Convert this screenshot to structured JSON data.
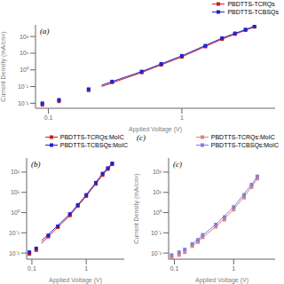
{
  "chart_data": [
    {
      "type": "scatter",
      "label": "(a)",
      "xlabel": "Applied Voltage (V)",
      "ylabel": "Current Density (mA/cm²)",
      "log": true,
      "xlim": [
        0.08,
        5.0
      ],
      "ylim": [
        0.005,
        500
      ],
      "xticks": [
        0.1,
        1
      ],
      "yticks": [
        {
          "value": 0.01,
          "label": "10⁻²"
        },
        {
          "value": 0.1,
          "label": "10⁻¹"
        },
        {
          "value": 1,
          "label": "10⁰"
        },
        {
          "value": 10,
          "label": "10¹"
        },
        {
          "value": 100,
          "label": "10²"
        }
      ],
      "grid": false,
      "legend": "top",
      "series": [
        {
          "name": "PBDTTS-TCRQs",
          "color": "#cc2222",
          "marker": "square",
          "x": [
            0.09,
            0.12,
            0.2,
            0.3,
            0.5,
            0.7,
            1.0,
            1.5,
            2.0,
            2.5,
            3.0,
            3.5
          ],
          "values": [
            0.008,
            0.013,
            0.06,
            0.18,
            0.7,
            2.0,
            6.0,
            25,
            70,
            140,
            240,
            380
          ],
          "line_x": [
            0.25,
            0.5,
            1.0,
            2.0,
            3.5
          ],
          "line_values": [
            0.1,
            0.7,
            6.0,
            70,
            380
          ]
        },
        {
          "name": "PBDTTS-TCBSQs",
          "color": "#2222cc",
          "marker": "square",
          "x": [
            0.09,
            0.12,
            0.2,
            0.3,
            0.5,
            0.7,
            1.0,
            1.5,
            2.0,
            2.5,
            3.0,
            3.5
          ],
          "values": [
            0.01,
            0.016,
            0.07,
            0.2,
            0.8,
            2.3,
            7.0,
            28,
            80,
            155,
            265,
            410
          ],
          "line_x": [
            0.25,
            0.5,
            1.0,
            2.0,
            3.5
          ],
          "line_values": [
            0.12,
            0.8,
            7.0,
            80,
            410
          ]
        }
      ]
    },
    {
      "type": "scatter",
      "label": "(b)",
      "xlabel": "Applied Voltage (V)",
      "log": true,
      "xlim": [
        0.08,
        5.0
      ],
      "ylim": [
        0.005,
        500
      ],
      "xticks": [
        0.1,
        1
      ],
      "yticks": [
        {
          "value": 0.01,
          "label": "10⁻²"
        },
        {
          "value": 0.1,
          "label": "10⁻¹"
        },
        {
          "value": 1,
          "label": "10⁰"
        },
        {
          "value": 10,
          "label": "10¹"
        },
        {
          "value": 100,
          "label": "10²"
        }
      ],
      "grid": false,
      "legend": "top",
      "series": [
        {
          "name": "PBDTTS-TCRQs:MoIC",
          "color": "#cc2222",
          "marker": "square",
          "x": [
            0.09,
            0.12,
            0.2,
            0.3,
            0.5,
            0.7,
            1.0,
            1.5,
            2.0,
            2.5,
            3.0
          ],
          "values": [
            0.009,
            0.014,
            0.065,
            0.19,
            0.72,
            2.1,
            6.5,
            26,
            72,
            142,
            245
          ],
          "line_x": [
            0.15,
            0.5,
            1.0,
            2.0,
            3.0
          ],
          "line_values": [
            0.03,
            0.72,
            6.5,
            72,
            245
          ]
        },
        {
          "name": "PBDTTS-TCBSQs:MoIC",
          "color": "#2222cc",
          "marker": "square",
          "x": [
            0.09,
            0.12,
            0.2,
            0.3,
            0.5,
            0.7,
            1.0,
            1.5,
            2.0,
            2.5,
            3.0
          ],
          "values": [
            0.011,
            0.017,
            0.075,
            0.21,
            0.85,
            2.4,
            7.5,
            30,
            85,
            158,
            270
          ],
          "line_x": [
            0.15,
            0.5,
            1.0,
            2.0,
            3.0
          ],
          "line_values": [
            0.04,
            0.85,
            7.5,
            85,
            270
          ]
        }
      ]
    },
    {
      "type": "scatter",
      "label": "(c)",
      "annotations": [
        "(c)"
      ],
      "xlabel": "Applied Voltage (V)",
      "ylabel": "Current Density (mA/cm²)",
      "log": true,
      "xlim": [
        0.08,
        5.0
      ],
      "ylim": [
        0.005,
        500
      ],
      "xticks": [
        0.1,
        1
      ],
      "yticks": [
        {
          "value": 0.01,
          "label": "10⁻²"
        },
        {
          "value": 0.1,
          "label": "10⁻¹"
        },
        {
          "value": 1,
          "label": "10⁰"
        },
        {
          "value": 10,
          "label": "10¹"
        },
        {
          "value": 100,
          "label": "10²"
        }
      ],
      "grid": false,
      "legend": "top",
      "series": [
        {
          "name": "PBDTTS-TCRQs:MoIC",
          "color": "#e08080",
          "marker": "square",
          "x": [
            0.09,
            0.12,
            0.15,
            0.2,
            0.25,
            0.3,
            0.5,
            0.7,
            1.0,
            1.5,
            2.0,
            2.5
          ],
          "values": [
            0.006,
            0.008,
            0.011,
            0.022,
            0.035,
            0.06,
            0.2,
            0.45,
            1.4,
            5.5,
            18,
            48
          ],
          "line_x": [
            0.2,
            0.5,
            1.0,
            2.0,
            2.5
          ],
          "line_values": [
            0.022,
            0.2,
            1.4,
            18,
            48
          ]
        },
        {
          "name": "PBDTTS-TCBSQs:MoIC",
          "color": "#8080e0",
          "marker": "square",
          "x": [
            0.09,
            0.12,
            0.15,
            0.2,
            0.25,
            0.3,
            0.5,
            0.7,
            1.0,
            1.5,
            2.0,
            2.5
          ],
          "values": [
            0.008,
            0.011,
            0.015,
            0.028,
            0.045,
            0.08,
            0.26,
            0.6,
            1.9,
            7.5,
            24,
            62
          ],
          "line_x": [
            0.2,
            0.5,
            1.0,
            2.0,
            2.5
          ],
          "line_values": [
            0.028,
            0.26,
            1.9,
            24,
            62
          ]
        }
      ]
    }
  ]
}
